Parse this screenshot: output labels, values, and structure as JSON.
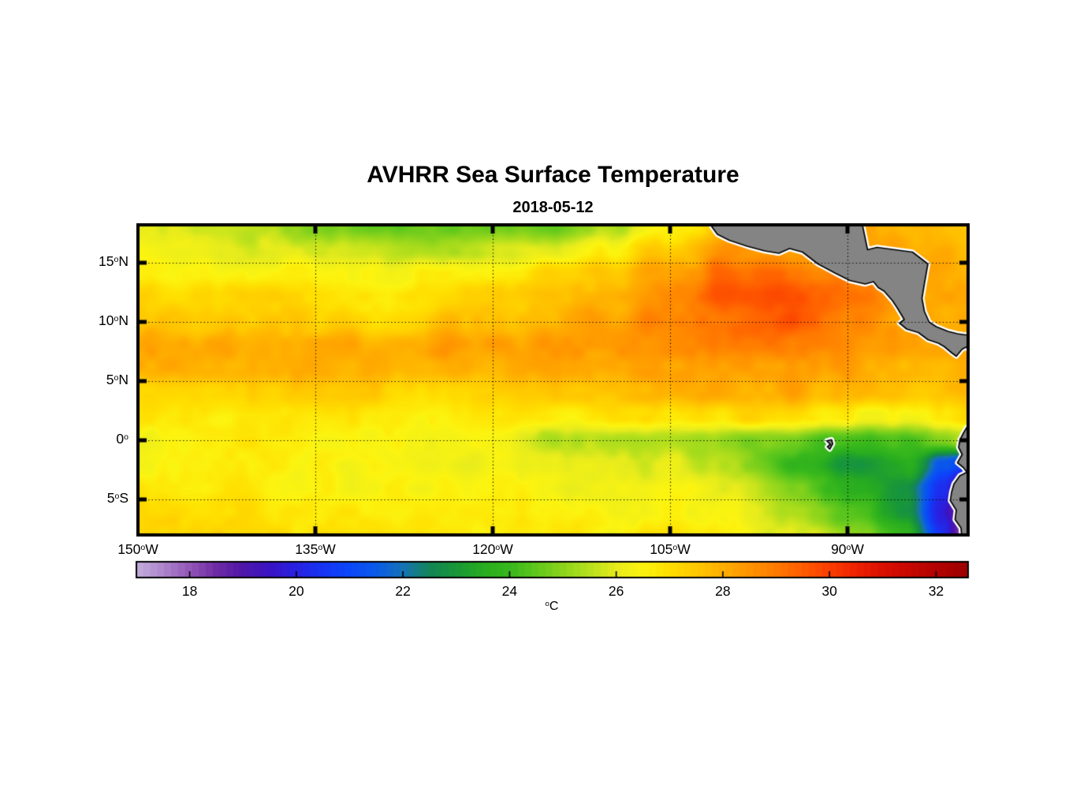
{
  "title": "AVHRR Sea Surface Temperature",
  "subtitle": "2018-05-12",
  "deg_symbol": "o",
  "colors": {
    "background": "#ffffff",
    "land": "#848484",
    "coastline": "#000000",
    "coast_halo": "#ffffff",
    "axis": "#000000",
    "gridline": "#000000",
    "text": "#000000"
  },
  "axes": {
    "lon_range": [
      -150,
      -79.8
    ],
    "lat_range": [
      -8.0,
      18.2
    ],
    "xticks": [
      {
        "num": "150",
        "dir": "W",
        "lon": -150
      },
      {
        "num": "135",
        "dir": "W",
        "lon": -135
      },
      {
        "num": "120",
        "dir": "W",
        "lon": -120
      },
      {
        "num": "105",
        "dir": "W",
        "lon": -105
      },
      {
        "num": "90",
        "dir": "W",
        "lon": -90
      }
    ],
    "yticks": [
      {
        "num": "15",
        "dir": "N",
        "lat": 15
      },
      {
        "num": "10",
        "dir": "N",
        "lat": 10
      },
      {
        "num": "5",
        "dir": "N",
        "lat": 5
      },
      {
        "num": "0",
        "dir": "",
        "lat": 0
      },
      {
        "num": "5",
        "dir": "S",
        "lat": -5
      }
    ]
  },
  "colorbar": {
    "min": 17.0,
    "max": 32.6,
    "ticks": [
      18,
      20,
      22,
      24,
      26,
      28,
      30,
      32
    ],
    "steps": 120,
    "unit": "C",
    "stops": [
      [
        17.0,
        "#C4AEDC"
      ],
      [
        17.5,
        "#AD85CC"
      ],
      [
        18.0,
        "#9357B8"
      ],
      [
        18.5,
        "#6F2BA4"
      ],
      [
        19.0,
        "#4F17A8"
      ],
      [
        19.5,
        "#3A14C4"
      ],
      [
        20.0,
        "#2822E2"
      ],
      [
        20.5,
        "#1834F2"
      ],
      [
        21.0,
        "#0A48FA"
      ],
      [
        21.5,
        "#0A5BE8"
      ],
      [
        22.0,
        "#1672B6"
      ],
      [
        22.5,
        "#148556"
      ],
      [
        23.0,
        "#189838"
      ],
      [
        23.5,
        "#28AC20"
      ],
      [
        24.0,
        "#38B81C"
      ],
      [
        24.5,
        "#60C81C"
      ],
      [
        25.0,
        "#8CD41C"
      ],
      [
        25.5,
        "#B8E01C"
      ],
      [
        26.0,
        "#E8EC1C"
      ],
      [
        26.5,
        "#FCF410"
      ],
      [
        27.0,
        "#FFDF00"
      ],
      [
        27.5,
        "#FFC800"
      ],
      [
        28.0,
        "#FFAE00"
      ],
      [
        28.5,
        "#FF9400"
      ],
      [
        29.0,
        "#FF7A00"
      ],
      [
        29.5,
        "#FF5C00"
      ],
      [
        30.0,
        "#FA3E00"
      ],
      [
        30.5,
        "#EE2200"
      ],
      [
        31.0,
        "#DB1000"
      ],
      [
        31.5,
        "#C70700"
      ],
      [
        32.0,
        "#B30300"
      ],
      [
        32.6,
        "#9C0000"
      ]
    ]
  },
  "chart_data": {
    "type": "heatmap",
    "title": "AVHRR Sea Surface Temperature",
    "date": "2018-05-12",
    "units": "degrees Celsius",
    "lon": [
      -150,
      -145,
      -140,
      -135,
      -130,
      -125,
      -120,
      -115,
      -110,
      -105,
      -100,
      -95,
      -90,
      -85,
      -82,
      -79.8
    ],
    "lat": [
      18.2,
      16,
      14,
      12,
      10,
      8,
      6,
      4,
      2,
      0,
      -2,
      -4,
      -6,
      -8
    ],
    "sst": [
      [
        25.9,
        25.6,
        25.6,
        24.8,
        24.5,
        24.6,
        24.4,
        24.5,
        25.3,
        26.6,
        27.6,
        28.0,
        28.0,
        27.8,
        27.7,
        27.6
      ],
      [
        26.3,
        26.1,
        25.9,
        26.0,
        25.6,
        25.3,
        25.8,
        26.0,
        26.7,
        27.5,
        28.5,
        28.4,
        28.2,
        28.0,
        28.0,
        27.9
      ],
      [
        26.7,
        26.5,
        26.5,
        26.6,
        26.3,
        26.5,
        26.8,
        27.2,
        27.6,
        28.3,
        29.3,
        29.1,
        28.7,
        28.2,
        28.1,
        28.0
      ],
      [
        27.2,
        27.0,
        27.2,
        27.0,
        26.8,
        27.0,
        27.4,
        27.6,
        28.0,
        28.7,
        29.6,
        29.7,
        29.1,
        28.4,
        28.3,
        28.2
      ],
      [
        27.6,
        27.4,
        27.6,
        27.4,
        27.3,
        27.5,
        27.8,
        28.0,
        28.3,
        28.9,
        29.3,
        29.5,
        28.8,
        28.3,
        28.1,
        28.0
      ],
      [
        28.1,
        28.2,
        28.1,
        28.0,
        28.1,
        28.3,
        28.2,
        28.3,
        28.4,
        28.6,
        28.8,
        28.9,
        28.6,
        28.3,
        28.2,
        28.1
      ],
      [
        27.9,
        27.8,
        28.0,
        27.9,
        27.9,
        28.0,
        27.9,
        28.0,
        28.1,
        28.2,
        28.3,
        28.4,
        28.2,
        28.0,
        28.0,
        27.9
      ],
      [
        27.4,
        27.2,
        27.4,
        27.2,
        27.3,
        27.2,
        27.4,
        27.5,
        27.6,
        27.8,
        28.0,
        28.2,
        27.8,
        27.6,
        27.6,
        27.7
      ],
      [
        26.8,
        26.7,
        26.9,
        26.7,
        26.8,
        26.7,
        26.9,
        26.8,
        26.9,
        27.0,
        27.0,
        27.2,
        26.6,
        26.4,
        26.6,
        26.9
      ],
      [
        26.5,
        26.4,
        26.6,
        26.4,
        26.5,
        26.3,
        26.2,
        25.6,
        25.3,
        25.5,
        25.2,
        24.6,
        24.2,
        24.4,
        25.0,
        25.9
      ],
      [
        26.6,
        26.5,
        26.6,
        26.4,
        26.4,
        26.2,
        26.3,
        26.0,
        25.8,
        26.0,
        25.4,
        23.9,
        23.1,
        23.6,
        21.6,
        20.5
      ],
      [
        26.9,
        26.7,
        26.7,
        26.5,
        26.5,
        26.5,
        26.4,
        26.3,
        26.2,
        26.3,
        25.8,
        24.9,
        23.8,
        23.0,
        20.3,
        18.4
      ],
      [
        27.1,
        27.0,
        26.9,
        26.7,
        26.6,
        26.6,
        26.5,
        26.5,
        26.4,
        26.5,
        26.2,
        25.5,
        24.4,
        23.0,
        20.0,
        17.6
      ],
      [
        27.3,
        27.1,
        27.0,
        26.9,
        26.8,
        26.8,
        26.7,
        26.8,
        26.6,
        26.8,
        26.5,
        26.1,
        25.1,
        23.8,
        20.5,
        17.4
      ]
    ],
    "land": {
      "central_america": [
        [
          -101.8,
          18.5
        ],
        [
          -101.0,
          17.4
        ],
        [
          -100.0,
          16.9
        ],
        [
          -98.5,
          16.4
        ],
        [
          -97.0,
          16.0
        ],
        [
          -95.8,
          15.8
        ],
        [
          -94.9,
          16.2
        ],
        [
          -93.8,
          15.9
        ],
        [
          -92.5,
          14.9
        ],
        [
          -91.0,
          14.1
        ],
        [
          -89.8,
          13.5
        ],
        [
          -88.5,
          13.2
        ],
        [
          -87.8,
          13.4
        ],
        [
          -87.4,
          12.9
        ],
        [
          -86.9,
          12.6
        ],
        [
          -86.2,
          11.8
        ],
        [
          -85.8,
          11.2
        ],
        [
          -85.2,
          10.2
        ],
        [
          -85.6,
          9.9
        ],
        [
          -85.0,
          9.4
        ],
        [
          -84.0,
          9.1
        ],
        [
          -83.2,
          8.5
        ],
        [
          -82.3,
          8.2
        ],
        [
          -81.8,
          7.9
        ],
        [
          -81.2,
          7.4
        ],
        [
          -80.8,
          7.1
        ],
        [
          -80.3,
          7.7
        ],
        [
          -79.9,
          7.9
        ],
        [
          -79.6,
          7.3
        ],
        [
          -79.3,
          7.3
        ],
        [
          -79.3,
          9.0
        ],
        [
          -80.0,
          8.9
        ],
        [
          -80.7,
          9.0
        ],
        [
          -81.5,
          9.2
        ],
        [
          -82.5,
          9.6
        ],
        [
          -83.1,
          10.0
        ],
        [
          -83.5,
          10.9
        ],
        [
          -83.7,
          12.0
        ],
        [
          -83.5,
          13.2
        ],
        [
          -83.2,
          14.9
        ],
        [
          -84.5,
          15.9
        ],
        [
          -86.0,
          16.1
        ],
        [
          -87.5,
          16.3
        ],
        [
          -88.3,
          16.1
        ],
        [
          -88.8,
          18.5
        ]
      ],
      "south_america": [
        [
          -79.3,
          1.2
        ],
        [
          -79.9,
          1.1
        ],
        [
          -80.2,
          0.6
        ],
        [
          -80.5,
          0.0
        ],
        [
          -80.6,
          -0.6
        ],
        [
          -80.3,
          -1.2
        ],
        [
          -80.7,
          -1.9
        ],
        [
          -80.2,
          -2.3
        ],
        [
          -79.9,
          -2.7
        ],
        [
          -80.5,
          -3.0
        ],
        [
          -81.0,
          -3.7
        ],
        [
          -81.2,
          -4.4
        ],
        [
          -81.3,
          -5.1
        ],
        [
          -80.8,
          -5.9
        ],
        [
          -80.9,
          -6.7
        ],
        [
          -80.4,
          -7.4
        ],
        [
          -80.3,
          -8.5
        ],
        [
          -79.3,
          -8.5
        ]
      ],
      "galapagos": [
        [
          -91.75,
          -0.05
        ],
        [
          -91.35,
          0.05
        ],
        [
          -91.25,
          -0.3
        ],
        [
          -91.5,
          -0.75
        ],
        [
          -91.7,
          -0.55
        ],
        [
          -91.45,
          -0.35
        ],
        [
          -91.75,
          -0.05
        ]
      ]
    }
  }
}
